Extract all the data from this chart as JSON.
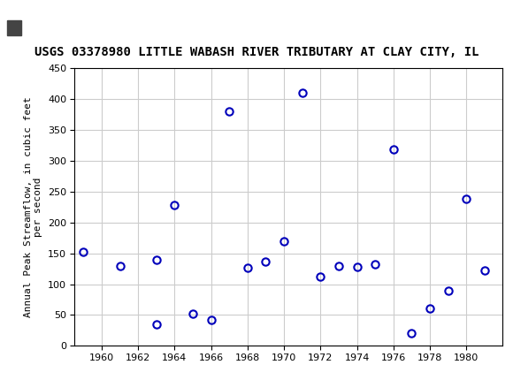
{
  "title": "USGS 03378980 LITTLE WABASH RIVER TRIBUTARY AT CLAY CITY, IL",
  "ylabel": "Annual Peak Streamflow, in cubic feet\nper second",
  "xlabel": "",
  "data_points": [
    [
      1959,
      153
    ],
    [
      1961,
      130
    ],
    [
      1963,
      140
    ],
    [
      1963,
      35
    ],
    [
      1964,
      228
    ],
    [
      1965,
      52
    ],
    [
      1966,
      42
    ],
    [
      1967,
      380
    ],
    [
      1968,
      126
    ],
    [
      1969,
      136
    ],
    [
      1970,
      170
    ],
    [
      1971,
      410
    ],
    [
      1972,
      112
    ],
    [
      1973,
      130
    ],
    [
      1974,
      128
    ],
    [
      1975,
      133
    ],
    [
      1976,
      318
    ],
    [
      1977,
      20
    ],
    [
      1978,
      60
    ],
    [
      1979,
      90
    ],
    [
      1980,
      238
    ],
    [
      1981,
      122
    ]
  ],
  "marker_color": "#0000bb",
  "marker_size": 6,
  "xlim": [
    1958.5,
    1982
  ],
  "ylim": [
    0,
    450
  ],
  "xticks": [
    1960,
    1962,
    1964,
    1966,
    1968,
    1970,
    1972,
    1974,
    1976,
    1978,
    1980
  ],
  "yticks": [
    0,
    50,
    100,
    150,
    200,
    250,
    300,
    350,
    400,
    450
  ],
  "grid_color": "#cccccc",
  "bg_color": "#ffffff",
  "header_color": "#006b3c",
  "title_fontsize": 10,
  "tick_fontsize": 8,
  "ylabel_fontsize": 8
}
